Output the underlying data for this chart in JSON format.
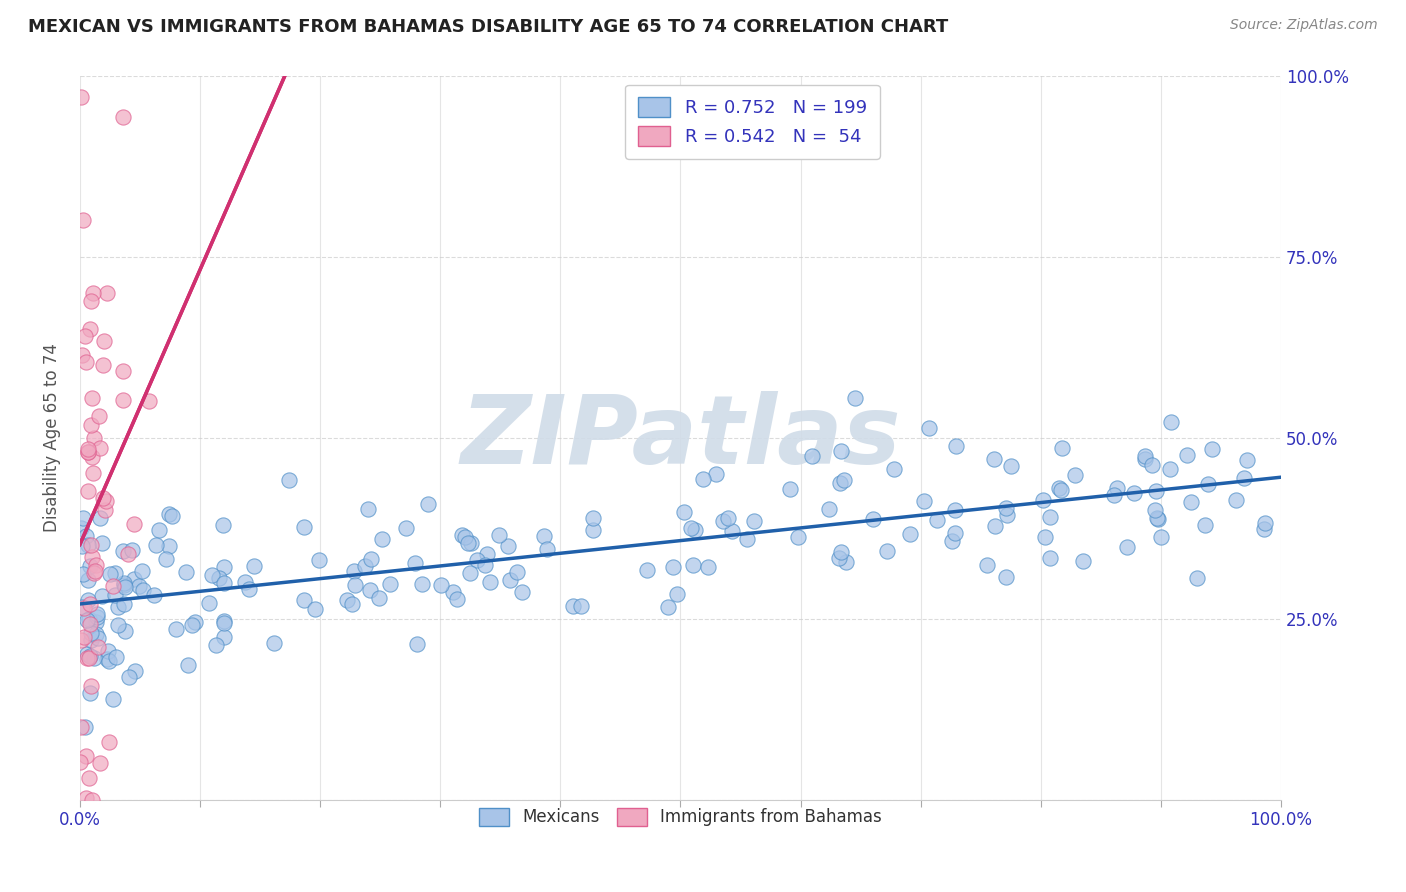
{
  "title": "MEXICAN VS IMMIGRANTS FROM BAHAMAS DISABILITY AGE 65 TO 74 CORRELATION CHART",
  "source_text": "Source: ZipAtlas.com",
  "ylabel": "Disability Age 65 to 74",
  "xlim": [
    0,
    1.0
  ],
  "ylim": [
    0,
    1.0
  ],
  "xticks": [
    0.0,
    0.1,
    0.2,
    0.3,
    0.4,
    0.5,
    0.6,
    0.7,
    0.8,
    0.9,
    1.0
  ],
  "yticks": [
    0.0,
    0.25,
    0.5,
    0.75,
    1.0
  ],
  "xticklabels": [
    "0.0%",
    "",
    "",
    "",
    "",
    "",
    "",
    "",
    "",
    "",
    "100.0%"
  ],
  "yticklabels_right": [
    "",
    "25.0%",
    "50.0%",
    "75.0%",
    "100.0%"
  ],
  "mexican_R": 0.752,
  "mexican_N": 199,
  "bahamas_R": 0.542,
  "bahamas_N": 54,
  "mexican_dot_color": "#a8c4e8",
  "mexican_edge_color": "#5090c8",
  "mexican_line_color": "#2060aa",
  "bahamas_dot_color": "#f0a8c0",
  "bahamas_edge_color": "#e06090",
  "bahamas_line_color": "#d03070",
  "watermark_color": "#d0dce8",
  "background_color": "#ffffff",
  "grid_color": "#cccccc",
  "title_color": "#222222",
  "axis_label_color": "#555555",
  "tick_color": "#3333bb",
  "legend_text_color": "#3333bb",
  "source_color": "#888888"
}
